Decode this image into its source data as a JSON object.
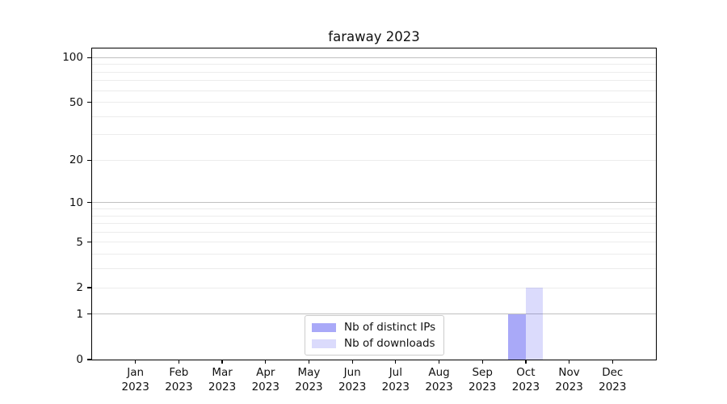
{
  "chart_data": {
    "type": "bar",
    "title": "faraway 2023",
    "categories": [
      "Jan",
      "Feb",
      "Mar",
      "Apr",
      "May",
      "Jun",
      "Jul",
      "Aug",
      "Sep",
      "Oct",
      "Nov",
      "Dec"
    ],
    "category_year": "2023",
    "series": [
      {
        "name": "Nb of distinct IPs",
        "color": "rgba(60,60,240,0.44)",
        "values": [
          0,
          0,
          0,
          0,
          0,
          0,
          0,
          0,
          0,
          1,
          0,
          0
        ]
      },
      {
        "name": "Nb of downloads",
        "color": "rgba(60,60,240,0.185)",
        "values": [
          0,
          0,
          0,
          0,
          0,
          0,
          0,
          0,
          0,
          2,
          0,
          0
        ]
      }
    ],
    "y_axis": {
      "scale": "log10(1+y)",
      "tick_values": [
        0,
        1,
        2,
        5,
        10,
        20,
        50,
        100
      ],
      "ylim": [
        0,
        115
      ]
    },
    "x_axis": {
      "tick_labels_line2": "2023"
    },
    "grid": {
      "major_values": [
        1,
        10,
        100
      ],
      "minor_values": [
        2,
        3,
        4,
        5,
        6,
        7,
        8,
        9,
        20,
        30,
        40,
        50,
        60,
        70,
        80,
        90
      ],
      "major_color": "#c0c0c0",
      "minor_color": "#ececec"
    },
    "legend": {
      "position": "lower center",
      "entries": [
        "Nb of distinct IPs",
        "Nb of downloads"
      ]
    }
  }
}
